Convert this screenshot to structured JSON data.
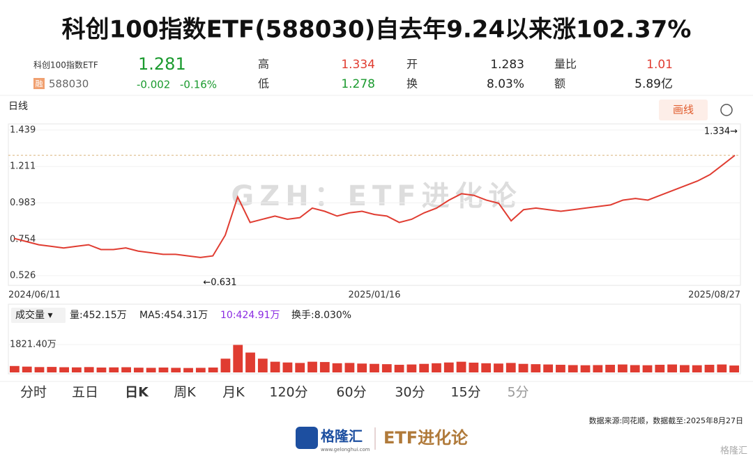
{
  "header": {
    "title": "科创100指数ETF(588030)自去年9.24以来涨102.37%"
  },
  "quote": {
    "name": "科创100指数ETF",
    "badge": "融",
    "code": "588030",
    "price": "1.281",
    "change": "-0.002",
    "change_pct": "-0.16%",
    "fields": [
      {
        "label": "高",
        "value": "1.334"
      },
      {
        "label": "开",
        "value": "1.283"
      },
      {
        "label": "量比",
        "value": "1.01"
      },
      {
        "label": "低",
        "value": "1.278"
      },
      {
        "label": "换",
        "value": "8.03%"
      },
      {
        "label": "额",
        "value": "5.89亿"
      }
    ]
  },
  "toolbar": {
    "period": "日线",
    "draw_button": "画线",
    "watermark": "GZH：ETF进化论"
  },
  "chart_data": [
    {
      "type": "line",
      "color": "#e03c31",
      "categories": [
        "2024/06/11",
        null,
        null,
        null,
        null,
        null,
        null,
        null,
        null,
        null,
        null,
        null,
        null,
        null,
        null,
        null,
        null,
        null,
        null,
        null,
        null,
        null,
        null,
        null,
        null,
        null,
        null,
        null,
        null,
        "2025/01/16",
        null,
        null,
        null,
        null,
        null,
        null,
        null,
        null,
        null,
        null,
        null,
        null,
        null,
        null,
        null,
        null,
        null,
        null,
        null,
        null,
        null,
        null,
        null,
        null,
        null,
        null,
        null,
        null,
        "2025/08/27"
      ],
      "values": [
        0.76,
        0.74,
        0.72,
        0.71,
        0.7,
        0.71,
        0.72,
        0.69,
        0.69,
        0.7,
        0.68,
        0.67,
        0.66,
        0.66,
        0.65,
        0.64,
        0.65,
        0.78,
        1.02,
        0.86,
        0.88,
        0.9,
        0.88,
        0.89,
        0.95,
        0.93,
        0.9,
        0.92,
        0.93,
        0.91,
        0.9,
        0.86,
        0.88,
        0.92,
        0.95,
        1.0,
        1.04,
        1.03,
        1.0,
        0.98,
        0.87,
        0.94,
        0.95,
        0.94,
        0.93,
        0.94,
        0.95,
        0.96,
        0.97,
        1.0,
        1.01,
        1.0,
        1.03,
        1.06,
        1.09,
        1.12,
        1.16,
        1.22,
        1.281
      ],
      "ylim": [
        0.465,
        1.478
      ],
      "yticks": [
        1.439,
        1.211,
        0.983,
        0.754,
        0.526
      ],
      "reference_value": 1.281,
      "annotations": [
        {
          "text": "1.334→"
        },
        {
          "text": "←0.631"
        }
      ]
    },
    {
      "type": "bar",
      "color": "#e03c31",
      "legend_texts": [
        "成交量 ▾",
        "量:452.15万",
        "MA5:454.31万",
        "10:424.91万",
        "换手:8.030%"
      ],
      "values": [
        420,
        380,
        350,
        360,
        340,
        330,
        350,
        320,
        330,
        340,
        310,
        300,
        320,
        300,
        290,
        300,
        320,
        900,
        1800,
        1300,
        900,
        700,
        650,
        620,
        700,
        680,
        600,
        620,
        580,
        560,
        540,
        500,
        520,
        560,
        600,
        650,
        700,
        640,
        600,
        580,
        620,
        560,
        540,
        520,
        500,
        480,
        470,
        480,
        500,
        520,
        480,
        470,
        500,
        520,
        480,
        470,
        500,
        520,
        452.15
      ],
      "ylim": [
        0,
        3190
      ],
      "yticks": [
        {
          "value": 1821.4,
          "label": "1821.40万"
        }
      ]
    }
  ],
  "tabs": [
    "分时",
    "五日",
    "日K",
    "周K",
    "月K",
    "120分",
    "60分",
    "30分",
    "15分",
    "5分"
  ],
  "footer": {
    "source": "数据来源:同花顺，数据截至:2025年8月27日",
    "logo": "格隆汇",
    "site": "www.gelonghui.com",
    "brand": "ETF进化论",
    "corner": "格隆汇"
  }
}
